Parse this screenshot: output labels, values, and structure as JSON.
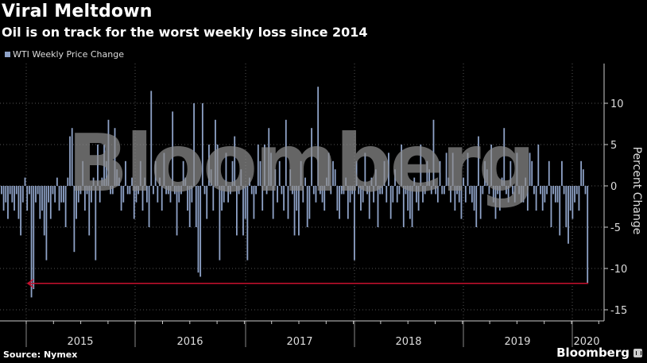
{
  "header": {
    "title": "Viral Meltdown",
    "subtitle": "Oil is on track for the worst weekly loss since 2014",
    "legend_label": "WTI Weekly Price Change"
  },
  "footer": {
    "source": "Source: Nymex",
    "brand": "Bloomberg"
  },
  "watermark": "Bloomberg",
  "colors": {
    "bar": "#8fa3c8",
    "arrow": "#c8102e",
    "axis": "#cccccc",
    "grid": "#555555",
    "background": "#000000"
  },
  "chart_data": {
    "type": "bar",
    "title": "Viral Meltdown",
    "subtitle": "Oil is on track for the worst weekly loss since 2014",
    "xlabel": "",
    "ylabel": "Percent Change",
    "ylim": [
      -16,
      14
    ],
    "yticks": [
      10,
      5,
      0,
      -5,
      -10,
      -15
    ],
    "x_tick_labels": [
      "2015",
      "2016",
      "2017",
      "2018",
      "2019",
      "2020"
    ],
    "grid": true,
    "legend_position": "top-left",
    "series": [
      {
        "name": "WTI Weekly Price Change",
        "frequency": "weekly",
        "start": "late 2014",
        "end": "early 2020",
        "values": [
          -1,
          -3,
          -2,
          -4,
          -1,
          -2,
          -3,
          -1,
          -4,
          -6,
          -2,
          1,
          -3,
          -1,
          -13.5,
          -12.5,
          -2,
          -1,
          -4,
          -3,
          -6,
          -9,
          -2,
          -4,
          -1,
          -2,
          1,
          -3,
          -2,
          -2,
          -5,
          1,
          6,
          7,
          -8,
          -4,
          -2,
          -1,
          3,
          -3,
          -1,
          -6,
          -2,
          1,
          -9,
          5,
          -2,
          1,
          5,
          3,
          8,
          -1,
          -1,
          7,
          2,
          1,
          -3,
          -2,
          3,
          -1,
          -1,
          1,
          -4,
          -2,
          -1,
          3,
          -3,
          1,
          -2,
          -5,
          11.5,
          -1,
          3,
          -2,
          1,
          -3,
          4,
          -1,
          -1,
          -2,
          9,
          -1,
          -6,
          -2,
          -1,
          3,
          1,
          -3,
          -5,
          -2,
          10,
          -5,
          -10.5,
          -11,
          10,
          -1,
          -4,
          5,
          2,
          -3,
          8,
          5,
          -9,
          -3,
          -2,
          4,
          -2,
          -1,
          3,
          6,
          -6,
          -1,
          2,
          -6,
          -4,
          -9,
          1,
          -1,
          -4,
          -1,
          5,
          3,
          -3,
          5,
          -1,
          7,
          4,
          -4,
          2,
          -2,
          3,
          -1,
          -3,
          8,
          -4,
          2,
          -1,
          -6,
          -3,
          -6,
          3,
          -2,
          1,
          -5,
          -4,
          7,
          -1,
          -2,
          12,
          -1,
          -2,
          -3,
          1,
          4,
          -1,
          3,
          2,
          -3,
          -4,
          -1,
          -1,
          1,
          -4,
          -2,
          -1,
          -9,
          3,
          -1,
          -3,
          -2,
          4,
          -1,
          -4,
          1,
          -2,
          2,
          -5,
          -1,
          -1,
          3,
          -2,
          4,
          -4,
          -2,
          2,
          -2,
          -1,
          5,
          -5,
          -1,
          -3,
          -4,
          -5,
          1,
          -2,
          -3,
          5,
          -2,
          -1,
          3,
          2,
          -1,
          8,
          -1,
          -2,
          3,
          -1,
          -1,
          4,
          1,
          -2,
          4,
          -3,
          -1,
          -2,
          -4,
          1,
          -2,
          4,
          -1,
          -2,
          -3,
          -5,
          6,
          -4,
          -1,
          3,
          2,
          -1,
          5,
          -2,
          -4,
          -1,
          -3,
          1,
          7,
          -1,
          -2,
          3,
          -1,
          -2,
          4,
          -1,
          -2,
          -2,
          1,
          -3,
          4,
          3,
          -1,
          -3,
          5,
          -1,
          -3,
          -2,
          -1,
          3,
          -5,
          -1,
          -2,
          -2,
          -6,
          3,
          -1,
          -5,
          -7,
          -3,
          -4,
          -2,
          -1,
          -3,
          3,
          2,
          -1,
          -11.8
        ]
      }
    ],
    "annotations": [
      {
        "type": "arrow",
        "text": "",
        "from": "early 2020 (-11.8%)",
        "to": "late 2014 (-11.8%)",
        "color": "#c8102e"
      }
    ]
  }
}
